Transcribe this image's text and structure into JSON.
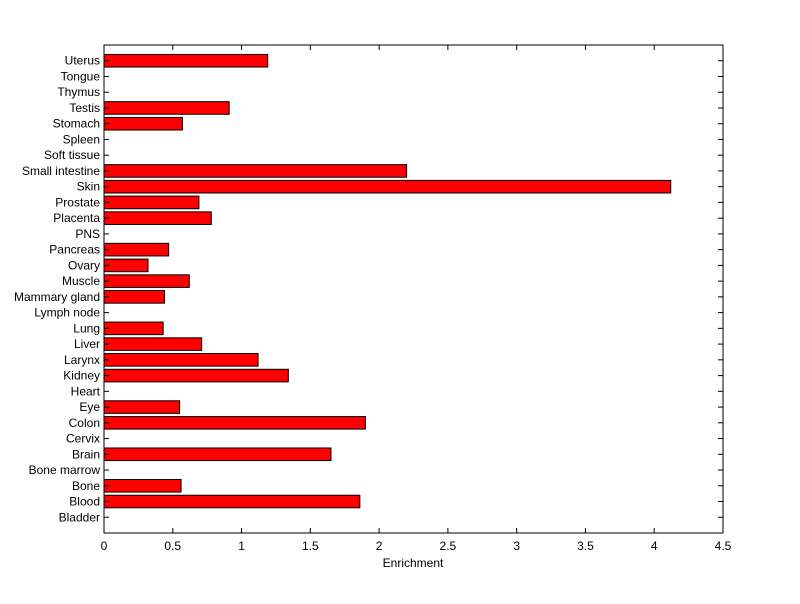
{
  "chart_data": {
    "type": "bar",
    "orientation": "horizontal",
    "title": "",
    "xlabel": "Enrichment",
    "ylabel": "",
    "xlim": [
      0,
      4.5
    ],
    "xticks": [
      0,
      0.5,
      1,
      1.5,
      2,
      2.5,
      3,
      3.5,
      4,
      4.5
    ],
    "xtick_labels": [
      "0",
      "0.5",
      "1",
      "1.5",
      "2",
      "2.5",
      "3",
      "3.5",
      "4",
      "4.5"
    ],
    "grid": false,
    "legend": "none",
    "bar_color": "#ff0000",
    "edge_color": "#000000",
    "categories": [
      "Bladder",
      "Blood",
      "Bone",
      "Bone marrow",
      "Brain",
      "Cervix",
      "Colon",
      "Eye",
      "Heart",
      "Kidney",
      "Larynx",
      "Liver",
      "Lung",
      "Lymph node",
      "Mammary gland",
      "Muscle",
      "Ovary",
      "Pancreas",
      "PNS",
      "Placenta",
      "Prostate",
      "Skin",
      "Small intestine",
      "Soft tissue",
      "Spleen",
      "Stomach",
      "Testis",
      "Thymus",
      "Tongue",
      "Uterus"
    ],
    "values": [
      0,
      1.86,
      0.56,
      0,
      1.65,
      0,
      1.9,
      0.55,
      0,
      1.34,
      1.12,
      0.71,
      0.43,
      0,
      0.44,
      0.62,
      0.32,
      0.47,
      0,
      0.78,
      0.69,
      4.12,
      2.2,
      0,
      0,
      0.57,
      0.91,
      0,
      0,
      1.19
    ]
  }
}
